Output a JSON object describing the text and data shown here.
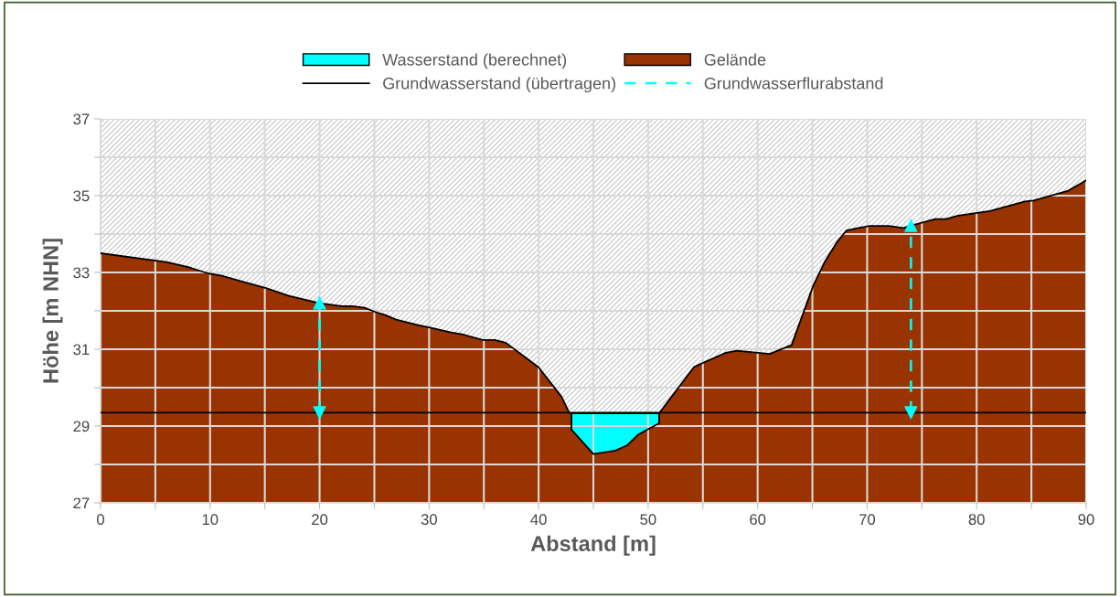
{
  "chart_data": {
    "type": "area",
    "xlabel": "Abstand [m]",
    "ylabel": "Höhe [m NHN]",
    "xlim": [
      0,
      90
    ],
    "ylim": [
      27,
      37
    ],
    "xticks": [
      0,
      {
        "value": 5,
        "label": null
      },
      10,
      {
        "value": 15,
        "label": null
      },
      20,
      {
        "value": 25,
        "label": null
      },
      30,
      {
        "value": 35,
        "label": null
      },
      40,
      {
        "value": 45,
        "label": null
      },
      50,
      {
        "value": 55,
        "label": null
      },
      60,
      {
        "value": 65,
        "label": null
      },
      70,
      {
        "value": 75,
        "label": null
      },
      80,
      {
        "value": 85,
        "label": null
      },
      90
    ],
    "yticks": [
      27,
      {
        "value": 28,
        "label": null
      },
      29,
      {
        "value": 30,
        "label": null
      },
      31,
      {
        "value": 32,
        "label": null
      },
      33,
      {
        "value": 34,
        "label": null
      },
      35,
      {
        "value": 36,
        "label": null
      },
      37
    ],
    "grid": true,
    "legend": "top",
    "x": [
      0,
      6,
      8,
      9.2,
      9.9,
      11,
      15.1,
      17.2,
      20,
      22,
      23,
      24.1,
      25.1,
      26,
      27,
      29,
      30,
      32,
      33,
      34.9,
      36,
      37,
      40,
      42.1,
      42.8,
      43,
      43,
      45,
      47,
      48.1,
      49.1,
      51,
      51,
      54.2,
      57.1,
      58.1,
      61.1,
      63.1,
      65.1,
      66.1,
      67.2,
      68.1,
      69.2,
      70.2,
      72,
      73.3,
      74.3,
      76.2,
      77.2,
      78.3,
      81.2,
      84.4,
      85.2,
      88.3,
      90
    ],
    "series": [
      {
        "name": "Wasserstand (berechnet)",
        "color": "#00ffff",
        "x": [
          43,
          51
        ],
        "values": [
          29.33,
          29.33
        ]
      },
      {
        "name": "Gelände",
        "color": "#993300",
        "values": [
          33.5,
          33.27,
          33.14,
          33.03,
          32.97,
          32.92,
          32.59,
          32.39,
          32.2,
          32.12,
          32.12,
          32.08,
          31.97,
          31.89,
          31.77,
          31.63,
          31.57,
          31.44,
          31.39,
          31.24,
          31.24,
          31.17,
          30.53,
          29.76,
          29.34,
          29.33,
          28.91,
          28.27,
          28.36,
          28.5,
          28.78,
          29.07,
          29.33,
          30.54,
          30.91,
          30.96,
          30.88,
          31.11,
          32.67,
          33.26,
          33.77,
          34.09,
          34.16,
          34.21,
          34.21,
          34.16,
          34.24,
          34.39,
          34.39,
          34.48,
          34.6,
          34.85,
          34.87,
          35.12,
          35.4
        ]
      },
      {
        "name": "Grundwasserstand (übertragen)",
        "type": "line",
        "color": "#000000",
        "x": [
          0,
          90
        ],
        "values": [
          29.35,
          29.35
        ]
      },
      {
        "name": "Grundwasserflurabstand",
        "type": "line",
        "marker": "triangle",
        "color": "#00ffff",
        "line_style": "dashed",
        "x": [
          20,
          20
        ],
        "values": [
          29.35,
          32.2
        ]
      },
      {
        "type": "line",
        "marker": "triangle",
        "color": "#00ffff",
        "line_style": "dashed",
        "x": [
          74,
          74
        ],
        "values": [
          29.35,
          34.22
        ]
      }
    ]
  }
}
